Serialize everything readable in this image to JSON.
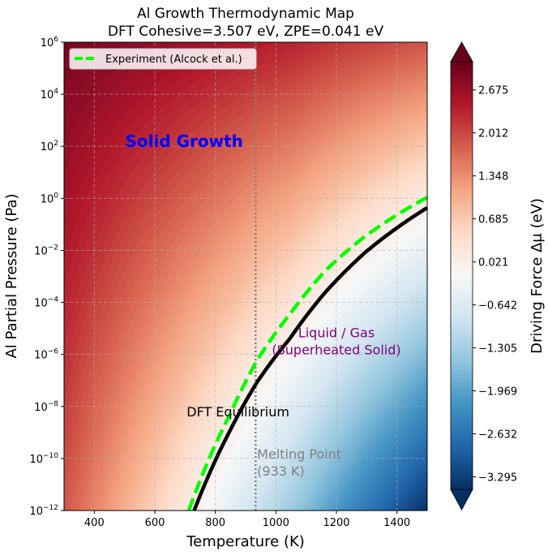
{
  "chart_data": {
    "type": "heatmap",
    "title_lines": [
      "Al Growth Thermodynamic Map",
      "DFT Cohesive=3.507 eV, ZPE=0.041 eV"
    ],
    "xlabel": "Temperature (K)",
    "ylabel": "Al Partial Pressure (Pa)",
    "xlim": [
      300,
      1500
    ],
    "ylim": [
      1e-12,
      1000000.0
    ],
    "yscale": "log",
    "grid": true,
    "x_ticks": [
      400,
      600,
      800,
      1000,
      1200,
      1400
    ],
    "x_tick_labels": [
      "400",
      "600",
      "800",
      "1000",
      "1200",
      "1400"
    ],
    "y_tick_base": "10",
    "y_tick_exponents": [
      "6",
      "4",
      "2",
      "0",
      "−2",
      "−4",
      "−6",
      "−8",
      "−10",
      "−12"
    ],
    "y_tick_values": [
      6,
      4,
      2,
      0,
      -2,
      -4,
      -6,
      -8,
      -10,
      -12
    ],
    "colormap": "RdBu_r",
    "colorbar": {
      "label": "Driving Force Δμ (eV)",
      "clim": [
        -3.49,
        3.11
      ],
      "extend": "both",
      "ticks": [
        2.675,
        2.012,
        1.348,
        0.685,
        0.021,
        -0.642,
        -1.305,
        -1.969,
        -2.632,
        -3.295
      ],
      "tick_labels": [
        "2.675",
        "2.012",
        "1.348",
        "0.685",
        "0.021",
        "−0.642",
        "−1.305",
        "−1.969",
        "−2.632",
        "−3.295"
      ]
    },
    "series": [
      {
        "name": "DFT Equilibrium",
        "style": "solid",
        "color": "#000000",
        "T": [
          730,
          847,
          937,
          1045,
          1162,
          1297,
          1503
        ],
        "log10_P": [
          -12,
          -8.96,
          -7.08,
          -5.41,
          -3.63,
          -2.06,
          -0.34
        ]
      },
      {
        "name": "Experiment (Alcock et al.)",
        "style": "dashed",
        "color": "#00ff00",
        "T": [
          712,
          847,
          937,
          1045,
          1162,
          1297,
          1499
        ],
        "log10_P": [
          -12,
          -8.33,
          -6.24,
          -4.47,
          -2.8,
          -1.44,
          0.03
        ]
      }
    ],
    "melting_point": {
      "T": 933,
      "color": "#808080"
    },
    "legend": {
      "placement": "top-left",
      "entries": [
        "Experiment (Alcock et al.)"
      ]
    },
    "annotations": {
      "solid": {
        "text": "Solid Growth",
        "color": "#0000ff",
        "T": 697,
        "log10_P": 2.2
      },
      "liquid_line1": "Liquid / Gas",
      "liquid_line2": "(Superheated Solid)",
      "liquid_color": "#800080",
      "liquid_pos": {
        "T": 1200,
        "log10_P": -5.5
      },
      "dft": {
        "text": "DFT Equilibrium",
        "T": 705,
        "log10_P": -8.2
      },
      "melt_line1": "Melting Point",
      "melt_line2": "(933 K)",
      "melt_pos": {
        "T": 938,
        "log10_P": -10.0
      }
    }
  }
}
